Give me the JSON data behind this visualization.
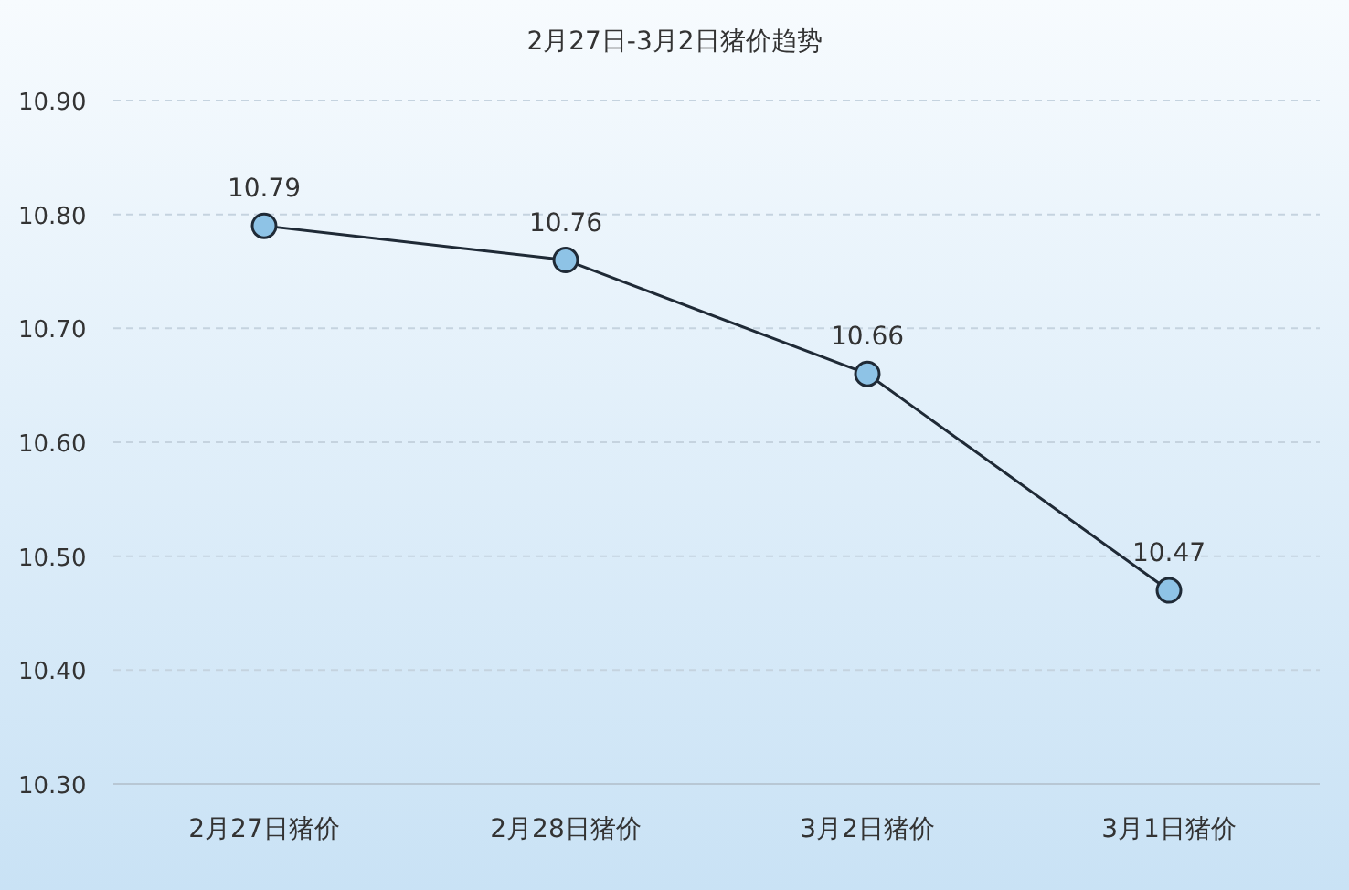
{
  "chart_data": {
    "type": "line",
    "title": "2月27日-3月2日猪价趋势",
    "categories": [
      "2月27日猪价",
      "2月28日猪价",
      "3月2日猪价",
      "3月1日猪价"
    ],
    "series": [
      {
        "color": "#1f2a36",
        "values": [
          10.79,
          10.76,
          10.66,
          10.47
        ]
      }
    ],
    "ylim": [
      10.3,
      10.9
    ],
    "yticks": [
      {
        "value": 10.3,
        "label": "10.30"
      },
      {
        "value": 10.4,
        "label": "10.40"
      },
      {
        "value": 10.5,
        "label": "10.50"
      },
      {
        "value": 10.6,
        "label": "10.60"
      },
      {
        "value": 10.7,
        "label": "10.70"
      },
      {
        "value": 10.8,
        "label": "10.80"
      },
      {
        "value": 10.9,
        "label": "10.90"
      }
    ],
    "grid": "y",
    "marker": "circle",
    "line_style": "solid",
    "data_labels": true
  }
}
